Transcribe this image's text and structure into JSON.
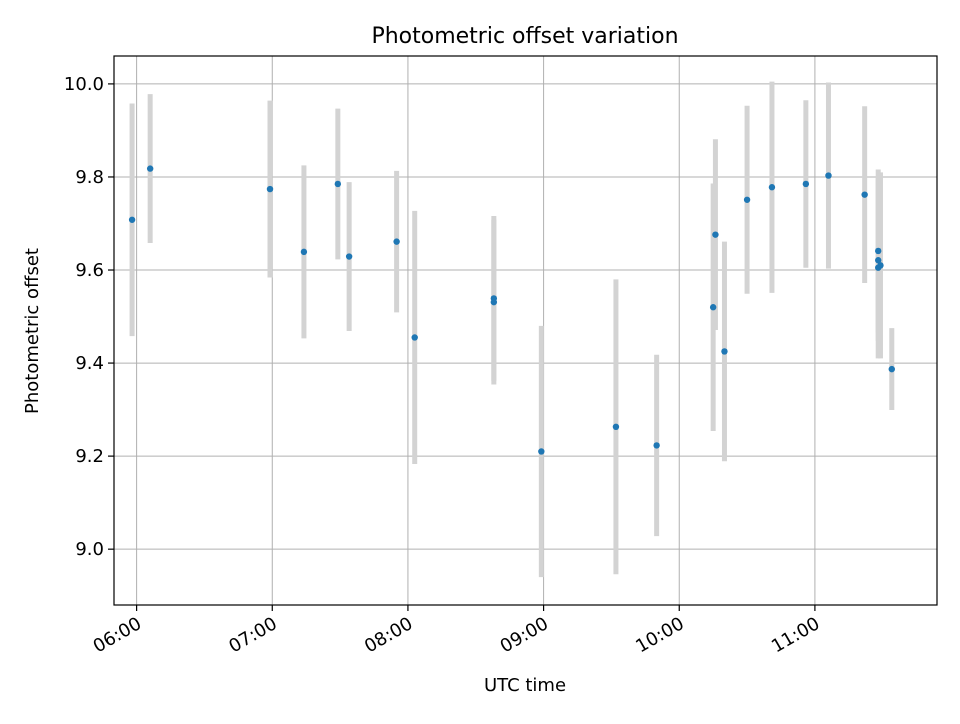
{
  "chart_data": {
    "type": "scatter",
    "title": "Photometric offset variation",
    "xlabel": "UTC time",
    "ylabel": "Photometric offset",
    "xlim": [
      "05:50",
      "11:54"
    ],
    "ylim": [
      8.88,
      10.06
    ],
    "x_ticks": [
      "06:00",
      "07:00",
      "08:00",
      "09:00",
      "10:00",
      "11:00"
    ],
    "y_ticks": [
      9.0,
      9.2,
      9.4,
      9.6,
      9.8,
      10.0
    ],
    "y_tick_labels": [
      "9.0",
      "9.2",
      "9.4",
      "9.6",
      "9.8",
      "10.0"
    ],
    "grid": true,
    "legend": "none",
    "colors": {
      "marker": "#1f77b4",
      "errorbar": "#d3d3d3",
      "grid": "#b0b0b0"
    },
    "points": [
      {
        "t": "05:58",
        "y": 9.708,
        "err": 0.25
      },
      {
        "t": "06:06",
        "y": 9.818,
        "err": 0.16
      },
      {
        "t": "06:59",
        "y": 9.774,
        "err": 0.19
      },
      {
        "t": "07:14",
        "y": 9.639,
        "err": 0.186
      },
      {
        "t": "07:29",
        "y": 9.785,
        "err": 0.162
      },
      {
        "t": "07:34",
        "y": 9.629,
        "err": 0.16
      },
      {
        "t": "07:55",
        "y": 9.661,
        "err": 0.152
      },
      {
        "t": "08:03",
        "y": 9.455,
        "err": 0.272
      },
      {
        "t": "08:38",
        "y": 9.539,
        "err": 0.177
      },
      {
        "t": "08:38",
        "y": 9.531,
        "err": 0.177
      },
      {
        "t": "08:59",
        "y": 9.21,
        "err": 0.27
      },
      {
        "t": "09:32",
        "y": 9.263,
        "err": 0.317
      },
      {
        "t": "09:50",
        "y": 9.223,
        "err": 0.195
      },
      {
        "t": "10:15",
        "y": 9.52,
        "err": 0.266
      },
      {
        "t": "10:16",
        "y": 9.676,
        "err": 0.205
      },
      {
        "t": "10:20",
        "y": 9.425,
        "err": 0.236
      },
      {
        "t": "10:30",
        "y": 9.751,
        "err": 0.202
      },
      {
        "t": "10:41",
        "y": 9.778,
        "err": 0.227
      },
      {
        "t": "10:56",
        "y": 9.785,
        "err": 0.18
      },
      {
        "t": "11:06",
        "y": 9.803,
        "err": 0.2
      },
      {
        "t": "11:22",
        "y": 9.762,
        "err": 0.19
      },
      {
        "t": "11:28",
        "y": 9.641,
        "err": 0.175
      },
      {
        "t": "11:28",
        "y": 9.621,
        "err": 0.173
      },
      {
        "t": "11:28",
        "y": 9.605,
        "err": 0.195
      },
      {
        "t": "11:29",
        "y": 9.61,
        "err": 0.2
      },
      {
        "t": "11:34",
        "y": 9.387,
        "err": 0.088
      }
    ]
  }
}
